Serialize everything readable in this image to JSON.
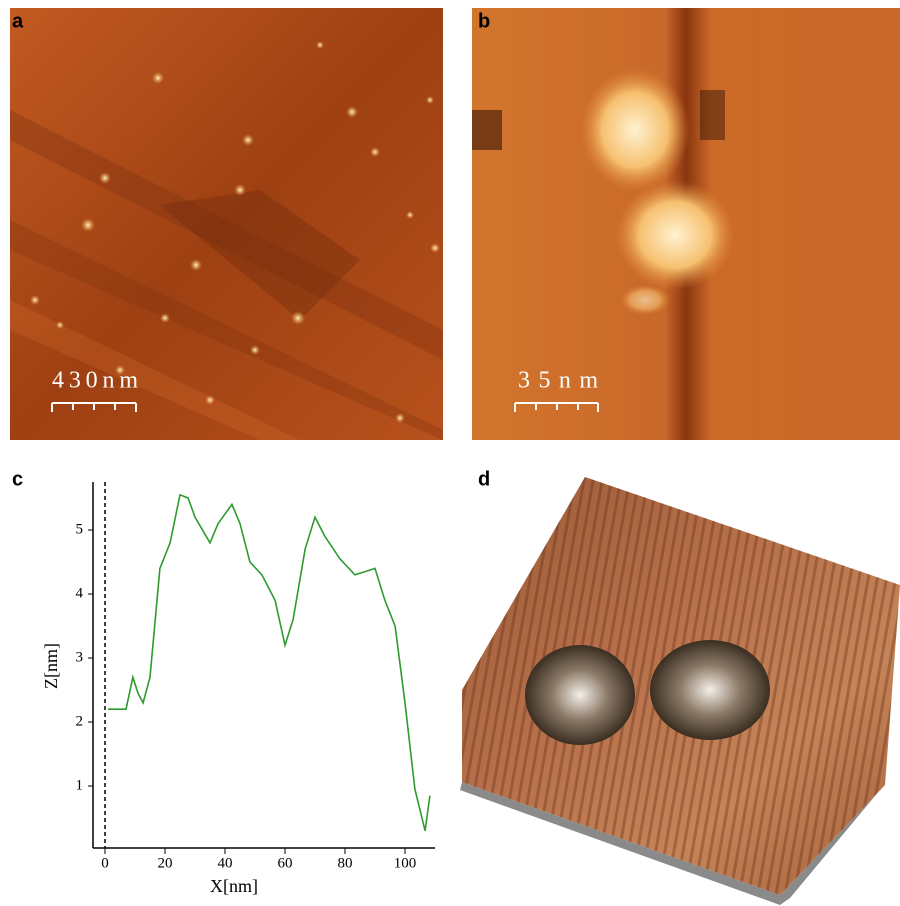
{
  "panels": [
    {
      "label": "a",
      "scale_bar": "430nm"
    },
    {
      "label": "b",
      "scale_bar": "35nm"
    },
    {
      "label": "c"
    },
    {
      "label": "d"
    }
  ],
  "chart_data": {
    "type": "line",
    "x_label": "X[nm]",
    "y_label": "Z[nm]",
    "x": [
      1,
      5,
      7,
      9.3,
      11,
      12.7,
      15,
      18.3,
      21.7,
      25,
      27.7,
      30,
      35,
      37.7,
      42.3,
      45,
      48.3,
      52.3,
      56.7,
      60,
      62.7,
      66.7,
      70,
      73.3,
      78.3,
      83.3,
      86.7,
      90,
      93.3,
      96.7,
      100,
      103.3,
      106.7,
      108.3
    ],
    "series": [
      {
        "color": "#2e9a2e",
        "values": [
          2.2,
          2.2,
          2.2,
          2.7,
          2.45,
          2.3,
          2.7,
          4.4,
          4.8,
          5.55,
          5.5,
          5.2,
          4.8,
          5.1,
          5.4,
          5.1,
          4.5,
          4.3,
          3.9,
          3.2,
          3.6,
          4.7,
          5.2,
          4.9,
          4.55,
          4.3,
          4.35,
          4.4,
          3.9,
          3.5,
          2.3,
          0.95,
          0.3,
          0.85
        ]
      }
    ],
    "xlim": [
      -4,
      110
    ],
    "ylim": [
      0,
      5.75
    ],
    "xticks": [
      0,
      20,
      40,
      60,
      80,
      100
    ],
    "yticks": [
      1,
      2,
      3,
      4,
      5
    ],
    "vline": 0
  }
}
